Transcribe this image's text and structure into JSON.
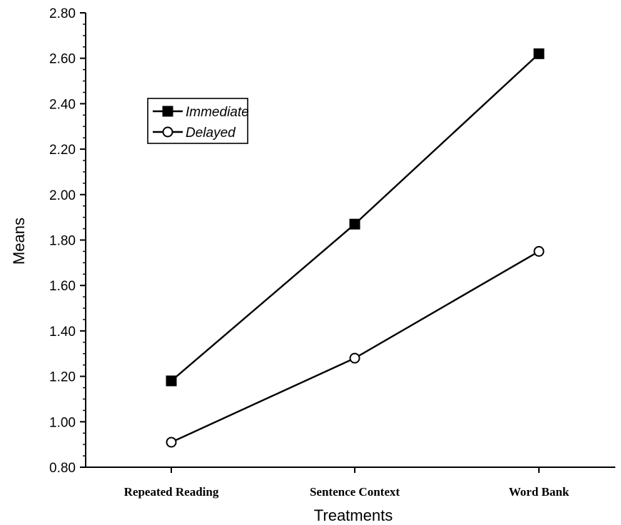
{
  "chart_data": {
    "type": "line",
    "title": "",
    "xlabel": "Treatments",
    "ylabel": "Means",
    "categories": [
      "Repeated Reading",
      "Sentence Context",
      "Word Bank"
    ],
    "ylim": [
      0.8,
      2.8
    ],
    "yticks": [
      "0.80",
      "1.00",
      "1.20",
      "1.40",
      "1.60",
      "1.80",
      "2.00",
      "2.20",
      "2.40",
      "2.60",
      "2.80"
    ],
    "grid": false,
    "legend_position": "top-left",
    "series": [
      {
        "name": "Immediate",
        "marker": "filled-square",
        "values": [
          1.18,
          1.87,
          2.62
        ]
      },
      {
        "name": "Delayed",
        "marker": "open-circle",
        "values": [
          0.91,
          1.28,
          1.75
        ]
      }
    ]
  }
}
